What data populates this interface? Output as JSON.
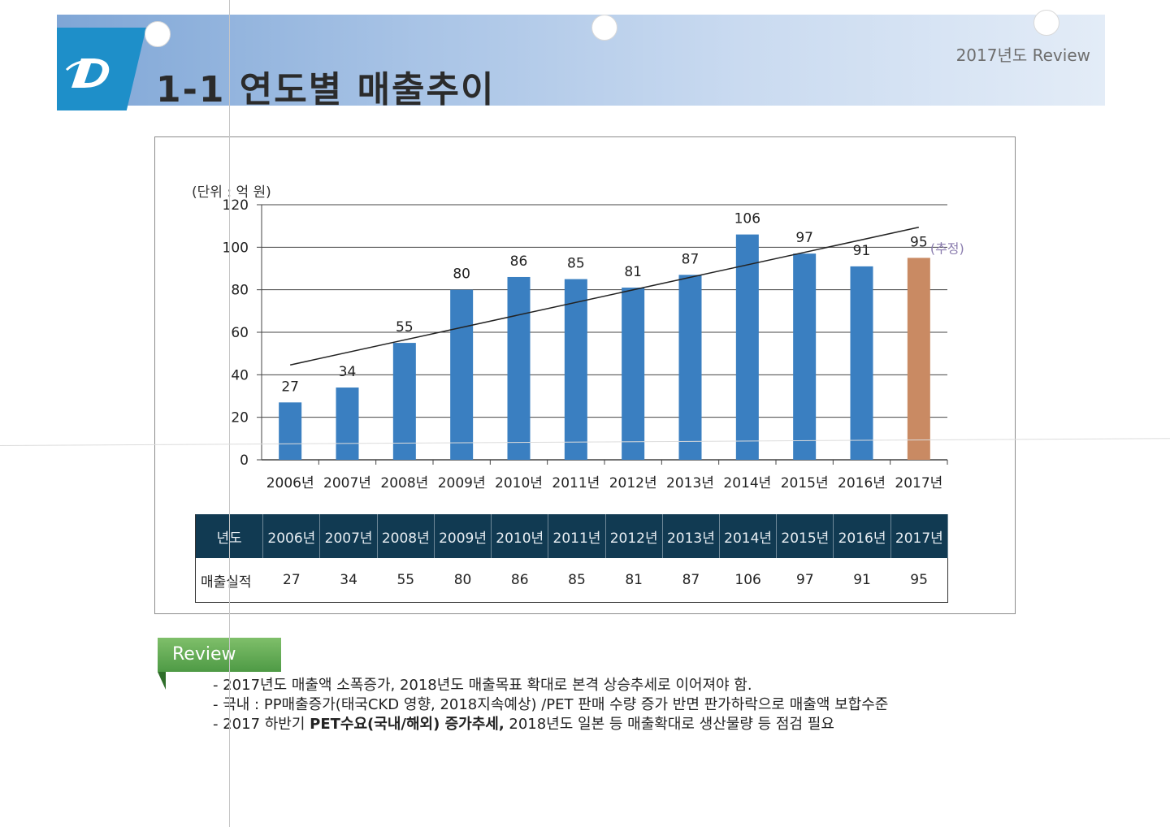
{
  "header": {
    "title": "1-1 연도별 매출추이",
    "tag": "2017년도 Review",
    "logo_icon": "stylized-d-logo-icon",
    "accent_color": "#1e8fc9"
  },
  "chart_data": {
    "type": "bar",
    "unit_label": "(단위 : 억 원)",
    "categories": [
      "2006년",
      "2007년",
      "2008년",
      "2009년",
      "2010년",
      "2011년",
      "2012년",
      "2013년",
      "2014년",
      "2015년",
      "2016년",
      "2017년"
    ],
    "values": [
      27,
      34,
      55,
      80,
      86,
      85,
      81,
      87,
      106,
      97,
      91,
      95
    ],
    "value_labels": [
      "27",
      "34",
      "55",
      "80",
      "86",
      "85",
      "81",
      "87",
      "106",
      "97",
      "91",
      "95"
    ],
    "estimate_note": "(추정)",
    "ylim": [
      0,
      120
    ],
    "yticks": [
      "0",
      "20",
      "40",
      "60",
      "80",
      "100",
      "120"
    ],
    "ytick_values": [
      0,
      20,
      40,
      60,
      80,
      100,
      120
    ],
    "grid": true,
    "trendline": true,
    "bar_color": "#3a7fc1",
    "estimate_bar_color": "#c98a63",
    "trend_color": "#222222"
  },
  "table": {
    "header_label": "년도",
    "row_label": "매출실적",
    "years": [
      "2006년",
      "2007년",
      "2008년",
      "2009년",
      "2010년",
      "2011년",
      "2012년",
      "2013년",
      "2014년",
      "2015년",
      "2016년",
      "2017년"
    ],
    "values": [
      "27",
      "34",
      "55",
      "80",
      "86",
      "85",
      "81",
      "87",
      "106",
      "97",
      "91",
      "95"
    ]
  },
  "review": {
    "tab_label": "Review",
    "items": [
      {
        "text": "- 2017년도 매출액 소폭증가, 2018년도 매출목표 확대로 본격 상승추세로 이어져야 함.",
        "bold": "",
        "rest": ""
      },
      {
        "text": "- 국내 : PP매출증가(태국CKD 영향, 2018지속예상) /PET 판매 수량 증가 반면 판가하락으로 매출액 보합수준",
        "bold": "",
        "rest": ""
      },
      {
        "text": "- 2017 하반기 ",
        "bold": "PET수요(국내/해외) 증가추세,",
        "rest": "  2018년도 일본 등 매출확대로 생산물량 등 점검 필요"
      }
    ]
  }
}
